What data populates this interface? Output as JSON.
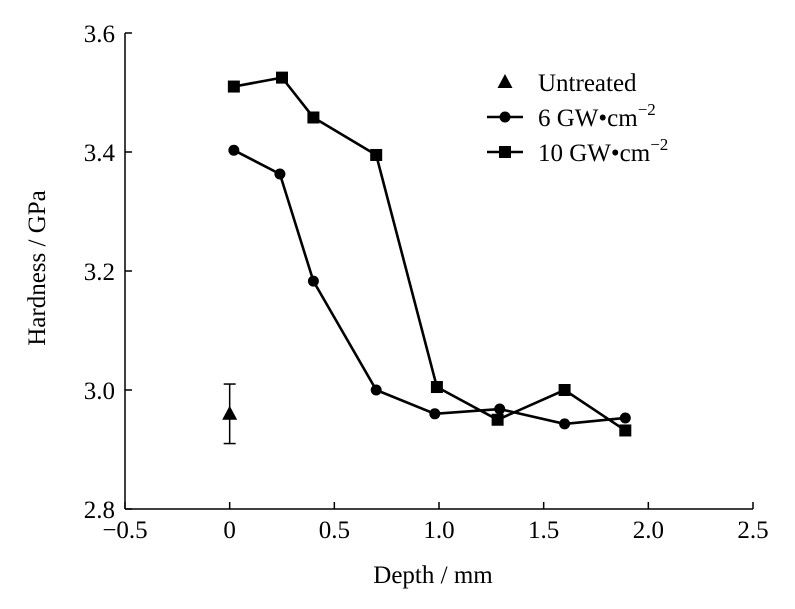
{
  "chart_data": {
    "type": "line",
    "xlabel": "Depth / mm",
    "ylabel": "Hardness / GPa",
    "xlim": [
      -0.5,
      2.5
    ],
    "ylim": [
      2.8,
      3.6
    ],
    "xticks": [
      -0.5,
      0,
      0.5,
      1.0,
      1.5,
      2.0,
      2.5
    ],
    "xtick_labels": [
      "−0.5",
      "0",
      "0.5",
      "1.0",
      "1.5",
      "2.0",
      "2.5"
    ],
    "yticks": [
      2.8,
      3.0,
      3.2,
      3.4,
      3.6
    ],
    "ytick_labels": [
      "2.8",
      "3.0",
      "3.2",
      "3.4",
      "3.6"
    ],
    "grid": false,
    "legend_position": "top-right",
    "series": [
      {
        "name": "Untreated",
        "legend_main": "Untreated",
        "legend_sup": "",
        "marker": "triangle",
        "line": false,
        "color": "#000000",
        "x": [
          0.0
        ],
        "y": [
          2.96
        ],
        "error": [
          0.05
        ]
      },
      {
        "name": "6 GW•cm−2",
        "legend_main": "6 GW•cm",
        "legend_sup": "−2",
        "marker": "circle",
        "line": true,
        "color": "#000000",
        "x": [
          0.02,
          0.24,
          0.4,
          0.7,
          0.98,
          1.29,
          1.6,
          1.89
        ],
        "y": [
          3.403,
          3.363,
          3.183,
          3.0,
          2.96,
          2.968,
          2.943,
          2.953
        ]
      },
      {
        "name": "10 GW•cm−2",
        "legend_main": "10 GW•cm",
        "legend_sup": "−2",
        "marker": "square",
        "line": true,
        "color": "#000000",
        "x": [
          0.02,
          0.25,
          0.4,
          0.7,
          0.99,
          1.28,
          1.6,
          1.89
        ],
        "y": [
          3.51,
          3.525,
          3.458,
          3.395,
          3.005,
          2.95,
          3.0,
          2.932
        ]
      }
    ]
  }
}
